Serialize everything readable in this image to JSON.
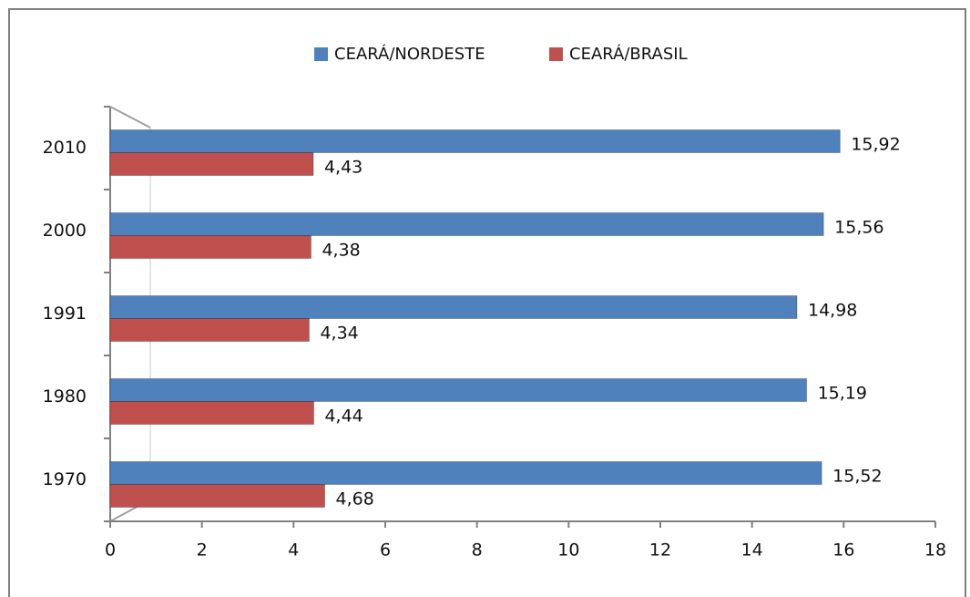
{
  "chart_data": {
    "type": "bar",
    "orientation": "horizontal",
    "categories": [
      "2010",
      "2000",
      "1991",
      "1980",
      "1970"
    ],
    "series": [
      {
        "name": "CEARÁ/NORDESTE",
        "color": "#4f81bd",
        "values": [
          15.92,
          15.56,
          14.98,
          15.19,
          15.52
        ],
        "value_labels": [
          "15,92",
          "15,56",
          "14,98",
          "15,19",
          "15,52"
        ]
      },
      {
        "name": "CEARÁ/BRASIL",
        "color": "#c0504d",
        "values": [
          4.43,
          4.38,
          4.34,
          4.44,
          4.68
        ],
        "value_labels": [
          "4,43",
          "4,38",
          "4,34",
          "4,44",
          "4,68"
        ]
      }
    ],
    "xlim": [
      0,
      18
    ],
    "xticks": [
      0,
      2,
      4,
      6,
      8,
      10,
      12,
      14,
      16,
      18
    ],
    "legend": "top",
    "grid": false
  }
}
